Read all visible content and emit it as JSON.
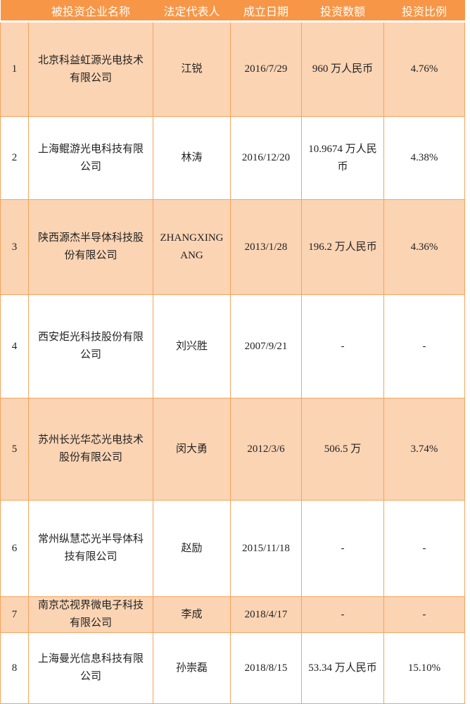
{
  "table": {
    "headers": [
      "",
      "被投资企业名称",
      "法定代表人",
      "成立日期",
      "投资数额",
      "投资比例"
    ],
    "rows": [
      {
        "no": "1",
        "company": "北京科益虹源光电技术有限公司",
        "legal_rep": "江锐",
        "founded": "2016/7/29",
        "amount": "960 万人民币",
        "ratio": "4.76%"
      },
      {
        "no": "2",
        "company": "上海鲲游光电科技有限公司",
        "legal_rep": "林涛",
        "founded": "2016/12/20",
        "amount": "10.9674 万人民币",
        "ratio": "4.38%"
      },
      {
        "no": "3",
        "company": "陕西源杰半导体科技股份有限公司",
        "legal_rep": "ZHANGXINGANG",
        "founded": "2013/1/28",
        "amount": "196.2 万人民币",
        "ratio": "4.36%"
      },
      {
        "no": "4",
        "company": "西安炬光科技股份有限公司",
        "legal_rep": "刘兴胜",
        "founded": "2007/9/21",
        "amount": "-",
        "ratio": "-"
      },
      {
        "no": "5",
        "company": "苏州长光华芯光电技术股份有限公司",
        "legal_rep": "闵大勇",
        "founded": "2012/3/6",
        "amount": "506.5 万",
        "ratio": "3.74%"
      },
      {
        "no": "6",
        "company": "常州纵慧芯光半导体科技有限公司",
        "legal_rep": "赵励",
        "founded": "2015/11/18",
        "amount": "-",
        "ratio": "-"
      },
      {
        "no": "7",
        "company": "南京芯视界微电子科技有限公司",
        "legal_rep": "李成",
        "founded": "2018/4/17",
        "amount": "-",
        "ratio": "-"
      },
      {
        "no": "8",
        "company": "上海曼光信息科技有限公司",
        "legal_rep": "孙崇磊",
        "founded": "2018/8/15",
        "amount": "53.34 万人民币",
        "ratio": "15.10%"
      }
    ]
  },
  "colors": {
    "header": "#F79646",
    "odd_row": "#FBD4B4",
    "even_row": "#FFFFFF",
    "border": "#F7A35C"
  }
}
